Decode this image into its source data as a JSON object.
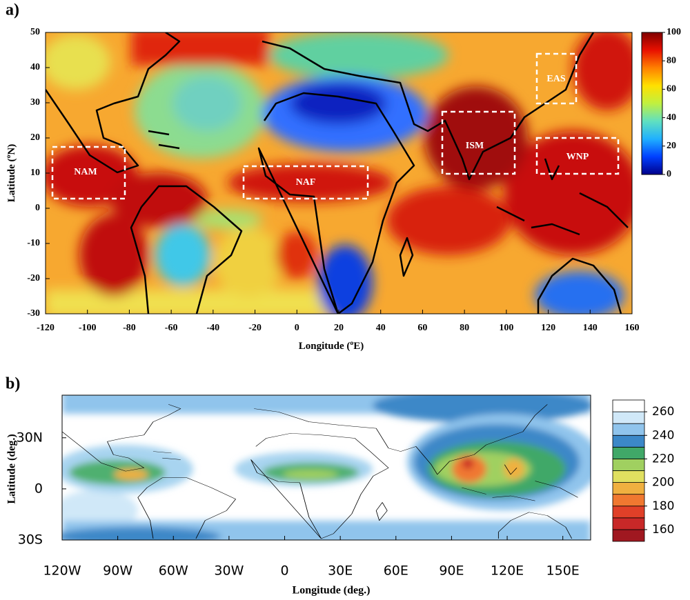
{
  "chart_data": [
    {
      "type": "heatmap",
      "label": "a)",
      "xlabel": [
        "Longitude (",
        "o",
        "E)"
      ],
      "ylabel": [
        "Latitude (",
        "o",
        "N)"
      ],
      "xlim": [
        -120,
        160
      ],
      "xticks": [
        -120,
        -100,
        -80,
        -60,
        -40,
        -20,
        0,
        20,
        40,
        60,
        80,
        100,
        120,
        140,
        160
      ],
      "ylim": [
        -30,
        50
      ],
      "yticks": [
        -30,
        -20,
        -10,
        0,
        10,
        20,
        30,
        40,
        50
      ],
      "colorbar": {
        "lim": [
          0,
          100
        ],
        "ticks": [
          0,
          20,
          40,
          60,
          80,
          100
        ],
        "colors": [
          "#00008b",
          "#0040ff",
          "#20b0ff",
          "#60e0c0",
          "#c0f040",
          "#ffe000",
          "#ff8000",
          "#e81000",
          "#800000"
        ]
      },
      "regions": [
        "NAM",
        "NAF",
        "ISM",
        "EAS",
        "WNP"
      ]
    },
    {
      "type": "contour",
      "label": "b)",
      "xlabel": "Longitude (deg.)",
      "ylabel": "Latitude (deg.)",
      "xlim": [
        -120,
        165
      ],
      "xticks": [
        {
          "value": -120,
          "label": "120W"
        },
        {
          "value": -90,
          "label": "90W"
        },
        {
          "value": -60,
          "label": "60W"
        },
        {
          "value": -30,
          "label": "30W"
        },
        0,
        {
          "value": 30,
          "label": "30E"
        },
        {
          "value": 60,
          "label": "60E"
        },
        {
          "value": 90,
          "label": "90E"
        },
        {
          "value": 120,
          "label": "120E"
        },
        {
          "value": 150,
          "label": "150E"
        }
      ],
      "ylim": [
        -30,
        55
      ],
      "yticks": [
        {
          "value": -30,
          "label": "30S"
        },
        0,
        {
          "value": 30,
          "label": "30N"
        }
      ],
      "colorbar": {
        "lim": [
          150,
          270
        ],
        "ticks": [
          160,
          180,
          200,
          220,
          240,
          260
        ],
        "colors": [
          "#a01820",
          "#c82828",
          "#e04028",
          "#f07830",
          "#f0b040",
          "#e0e060",
          "#a0d060",
          "#40a868",
          "#3c88c8",
          "#90c4ec",
          "#d0e8f8",
          "#ffffff"
        ]
      }
    }
  ]
}
